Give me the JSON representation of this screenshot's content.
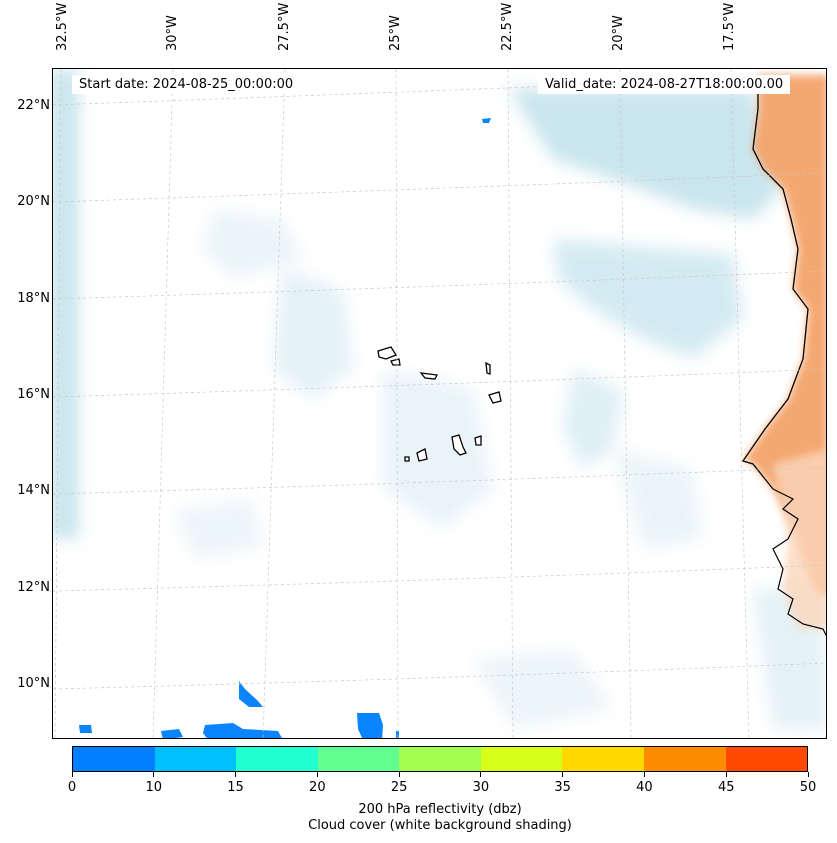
{
  "header": {
    "start_date": "Start date: 2024-08-25_00:00:00",
    "valid_date": "Valid_date: 2024-08-27T18:00:00.00"
  },
  "axes": {
    "lon_labels": [
      "32.5°W",
      "30°W",
      "27.5°W",
      "25°W",
      "22.5°W",
      "20°W",
      "17.5°W"
    ],
    "lat_labels": [
      "22°N",
      "20°N",
      "18°N",
      "16°N",
      "14°N",
      "12°N",
      "10°N"
    ]
  },
  "colorbar": {
    "ticks": [
      "0",
      "10",
      "15",
      "20",
      "25",
      "30",
      "35",
      "40",
      "45",
      "50"
    ],
    "colors": [
      "#0080ff",
      "#00c0ff",
      "#20ffd0",
      "#60ff90",
      "#a0ff50",
      "#d8ff18",
      "#ffd800",
      "#ff8c00",
      "#ff4a00"
    ],
    "label_line1": "200 hPa reflectivity (dbz)",
    "label_line2": "Cloud cover (white background shading)"
  },
  "map": {
    "land_color": "#f4a46a",
    "cloud_color": "#b8dde8",
    "echo_color": "#0a84ff"
  }
}
